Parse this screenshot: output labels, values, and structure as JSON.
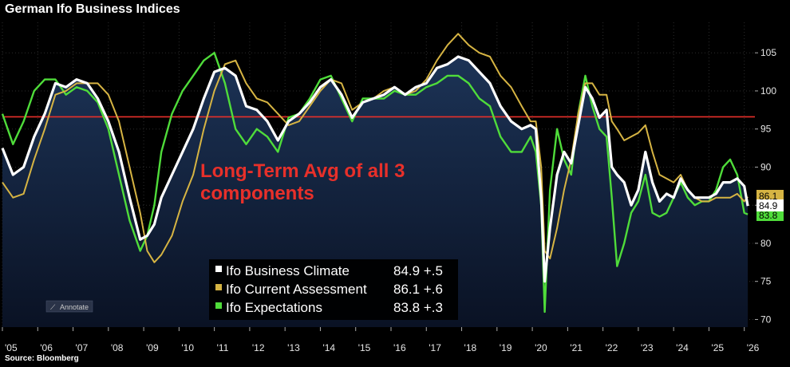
{
  "title": "German Ifo Business Indices",
  "source": "Source: Bloomberg",
  "annotation": [
    "Long-Term Avg of all 3",
    "components"
  ],
  "annotate_button": "Annotate",
  "colors": {
    "background": "#000000",
    "area_top": "#1c3356",
    "area_bottom": "#0a1224",
    "avg_line": "#e8302a",
    "climate": "#ffffff",
    "current": "#d6b443",
    "expectations": "#4fdc3a"
  },
  "chart_data": {
    "type": "line",
    "xlabel": "",
    "ylabel": "",
    "x_ticks": [
      "'05",
      "'06",
      "'07",
      "'08",
      "'09",
      "'10",
      "'11",
      "'12",
      "'13",
      "'14",
      "'15",
      "'16",
      "'17",
      "'18",
      "'19",
      "'20",
      "'21",
      "'22",
      "'23",
      "'24",
      "'25",
      "'26"
    ],
    "y_ticks": [
      70,
      75,
      80,
      85,
      90,
      95,
      100,
      105
    ],
    "ylim": [
      69,
      109
    ],
    "xlim": [
      2005.0,
      2026.3
    ],
    "grid": true,
    "legend_position": "bottom-center",
    "reference_line": 96.6,
    "series": [
      {
        "name": "Ifo Business Climate",
        "last_label": "84.9 +.5",
        "last_value": "84.9",
        "x": [
          2005.0,
          2005.3,
          2005.6,
          2005.9,
          2006.2,
          2006.5,
          2006.8,
          2007.1,
          2007.4,
          2007.7,
          2008.0,
          2008.3,
          2008.6,
          2008.9,
          2009.1,
          2009.3,
          2009.5,
          2009.8,
          2010.1,
          2010.4,
          2010.7,
          2011.0,
          2011.3,
          2011.6,
          2011.9,
          2012.2,
          2012.5,
          2012.8,
          2013.1,
          2013.4,
          2013.7,
          2014.0,
          2014.3,
          2014.6,
          2014.9,
          2015.2,
          2015.5,
          2015.8,
          2016.1,
          2016.4,
          2016.7,
          2017.0,
          2017.3,
          2017.6,
          2017.9,
          2018.2,
          2018.5,
          2018.8,
          2019.1,
          2019.4,
          2019.7,
          2019.95,
          2020.1,
          2020.25,
          2020.35,
          2020.5,
          2020.7,
          2020.9,
          2021.1,
          2021.3,
          2021.5,
          2021.7,
          2021.9,
          2022.1,
          2022.25,
          2022.4,
          2022.6,
          2022.8,
          2023.0,
          2023.2,
          2023.4,
          2023.6,
          2023.8,
          2024.0,
          2024.2,
          2024.4,
          2024.6,
          2024.8,
          2025.0,
          2025.2,
          2025.4,
          2025.6,
          2025.8,
          2026.0,
          2026.1
        ],
        "values": [
          92.5,
          89,
          90,
          94,
          97,
          101,
          100.5,
          101.5,
          101,
          99,
          96,
          92,
          86,
          80.5,
          81,
          82.5,
          86,
          89,
          92,
          95,
          99,
          102.5,
          103,
          102,
          98,
          97.5,
          96,
          93.5,
          96,
          97,
          98.5,
          100.5,
          101.5,
          99.5,
          96.5,
          98.5,
          99,
          99.5,
          100.5,
          99.5,
          100.5,
          101,
          103,
          103.5,
          104.5,
          104,
          102.5,
          101,
          98,
          96,
          95,
          95.5,
          95,
          86,
          75,
          82,
          89,
          92,
          90.5,
          95.5,
          100.5,
          99,
          96.5,
          97.5,
          90,
          89,
          88,
          85,
          87,
          92,
          88,
          85.5,
          86.5,
          86,
          88.5,
          87,
          86,
          86,
          86,
          86.5,
          88,
          88,
          88.5,
          87.5,
          84.9
        ]
      },
      {
        "name": "Ifo Current Assessment",
        "last_label": "86.1 +.6",
        "last_value": "86.1",
        "x": [
          2005.0,
          2005.3,
          2005.6,
          2005.9,
          2006.2,
          2006.5,
          2006.8,
          2007.1,
          2007.4,
          2007.7,
          2008.0,
          2008.3,
          2008.6,
          2008.9,
          2009.1,
          2009.3,
          2009.5,
          2009.8,
          2010.1,
          2010.4,
          2010.7,
          2011.0,
          2011.3,
          2011.6,
          2011.9,
          2012.2,
          2012.5,
          2012.8,
          2013.1,
          2013.4,
          2013.7,
          2014.0,
          2014.3,
          2014.6,
          2014.9,
          2015.2,
          2015.5,
          2015.8,
          2016.1,
          2016.4,
          2016.7,
          2017.0,
          2017.3,
          2017.6,
          2017.9,
          2018.2,
          2018.5,
          2018.8,
          2019.1,
          2019.4,
          2019.7,
          2019.95,
          2020.1,
          2020.25,
          2020.35,
          2020.5,
          2020.7,
          2020.9,
          2021.1,
          2021.3,
          2021.5,
          2021.7,
          2021.9,
          2022.1,
          2022.25,
          2022.4,
          2022.6,
          2022.8,
          2023.0,
          2023.2,
          2023.4,
          2023.6,
          2023.8,
          2024.0,
          2024.2,
          2024.4,
          2024.6,
          2024.8,
          2025.0,
          2025.2,
          2025.4,
          2025.6,
          2025.8,
          2026.0,
          2026.1
        ],
        "values": [
          88,
          86,
          86.5,
          91,
          95,
          99.5,
          100,
          101,
          101,
          101,
          99.5,
          96,
          90,
          84,
          79,
          77.5,
          78.5,
          81,
          85.5,
          89,
          95,
          100,
          103.5,
          104,
          101,
          99,
          98.5,
          97,
          95.5,
          96,
          98,
          100,
          101.5,
          101,
          97.5,
          98.5,
          99,
          100,
          100.5,
          99.5,
          100,
          101.5,
          104,
          106,
          107.5,
          106,
          105,
          104.5,
          102,
          100.5,
          98,
          96,
          96,
          90,
          79,
          78,
          82,
          87,
          91,
          97,
          101,
          101,
          99.5,
          99.5,
          96,
          95,
          93.5,
          94,
          94.5,
          95.5,
          92,
          89,
          88.5,
          88,
          89,
          87,
          86,
          85.5,
          85.5,
          86,
          86,
          86,
          86.5,
          85.5,
          86.1
        ]
      },
      {
        "name": "Ifo Expectations",
        "last_label": "83.8 +.3",
        "last_value": "83.8",
        "x": [
          2005.0,
          2005.3,
          2005.6,
          2005.9,
          2006.2,
          2006.5,
          2006.8,
          2007.1,
          2007.4,
          2007.7,
          2008.0,
          2008.3,
          2008.6,
          2008.9,
          2009.1,
          2009.3,
          2009.5,
          2009.8,
          2010.1,
          2010.4,
          2010.7,
          2011.0,
          2011.3,
          2011.6,
          2011.9,
          2012.2,
          2012.5,
          2012.8,
          2013.1,
          2013.4,
          2013.7,
          2014.0,
          2014.3,
          2014.6,
          2014.9,
          2015.2,
          2015.5,
          2015.8,
          2016.1,
          2016.4,
          2016.7,
          2017.0,
          2017.3,
          2017.6,
          2017.9,
          2018.2,
          2018.5,
          2018.8,
          2019.1,
          2019.4,
          2019.7,
          2019.95,
          2020.1,
          2020.25,
          2020.35,
          2020.5,
          2020.7,
          2020.9,
          2021.1,
          2021.3,
          2021.5,
          2021.7,
          2021.9,
          2022.1,
          2022.25,
          2022.4,
          2022.6,
          2022.8,
          2023.0,
          2023.2,
          2023.4,
          2023.6,
          2023.8,
          2024.0,
          2024.2,
          2024.4,
          2024.6,
          2024.8,
          2025.0,
          2025.2,
          2025.4,
          2025.6,
          2025.8,
          2026.0,
          2026.1
        ],
        "values": [
          97,
          93,
          96,
          100,
          101.5,
          101.5,
          99.5,
          100.5,
          100,
          98.5,
          95,
          89,
          83,
          79,
          81,
          85,
          92,
          97,
          100,
          102,
          104,
          105,
          101,
          95,
          93,
          95,
          94,
          92,
          96.5,
          97,
          99,
          101.5,
          102,
          99,
          96,
          99,
          99,
          99,
          100,
          99.5,
          99.5,
          100.5,
          101,
          102,
          102,
          101,
          99,
          98,
          94,
          92,
          92,
          94,
          92,
          85,
          71,
          87,
          95,
          91,
          89,
          97,
          102,
          98,
          95,
          94,
          86,
          77,
          80,
          84,
          85.5,
          89,
          84,
          83.5,
          84,
          86,
          88,
          86,
          85,
          85.5,
          85.5,
          87,
          90,
          91,
          89,
          84,
          83.8
        ]
      }
    ]
  }
}
